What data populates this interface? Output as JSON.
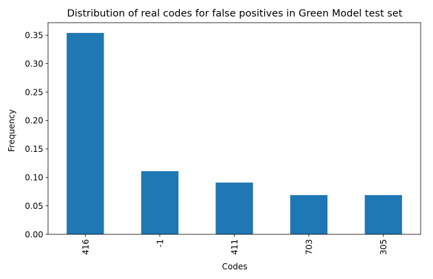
{
  "chart_data": {
    "type": "bar",
    "title": "Distribution of real codes for false positives in Green Model test set",
    "xlabel": "Codes",
    "ylabel": "Frequency",
    "categories": [
      "416",
      "-1",
      "411",
      "703",
      "305"
    ],
    "values": [
      0.354,
      0.111,
      0.091,
      0.069,
      0.069
    ],
    "ylim": [
      0,
      0.372
    ],
    "yticks": [
      "0.00",
      "0.05",
      "0.10",
      "0.15",
      "0.20",
      "0.25",
      "0.30",
      "0.35"
    ],
    "ytick_values": [
      0,
      0.05,
      0.1,
      0.15,
      0.2,
      0.25,
      0.3,
      0.35
    ],
    "bar_color": "#1f77b4",
    "grid": false,
    "legend": "none",
    "xtick_rotation": "vertical"
  }
}
